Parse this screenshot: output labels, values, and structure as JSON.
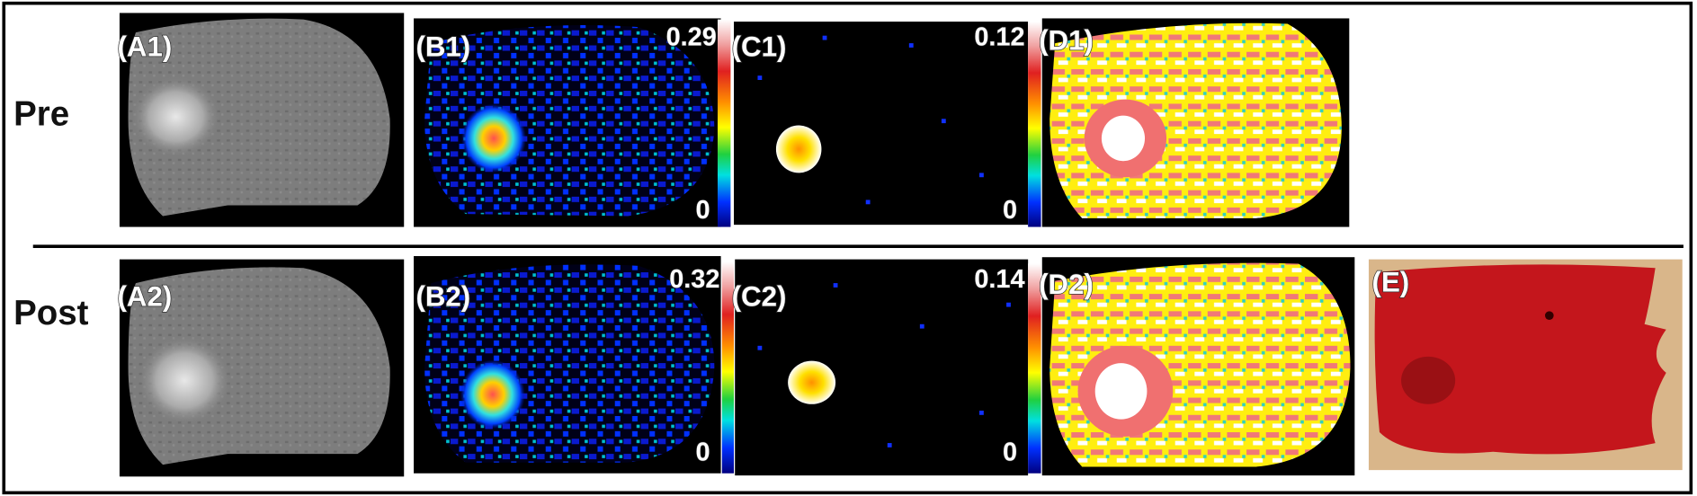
{
  "rows": [
    {
      "label": "Pre",
      "panels": [
        {
          "label": "(A1)"
        },
        {
          "label": "(B1)",
          "colorbar": {
            "max": 0.29,
            "min": 0
          }
        },
        {
          "label": "(C1)",
          "colorbar": {
            "max": 0.12,
            "min": 0
          }
        },
        {
          "label": "(D1)"
        }
      ]
    },
    {
      "label": "Post",
      "panels": [
        {
          "label": "(A2)"
        },
        {
          "label": "(B2)",
          "colorbar": {
            "max": 0.32,
            "min": 0
          }
        },
        {
          "label": "(C2)",
          "colorbar": {
            "max": 0.14,
            "min": 0
          }
        },
        {
          "label": "(D2)"
        },
        {
          "label": "(E)"
        }
      ]
    }
  ]
}
